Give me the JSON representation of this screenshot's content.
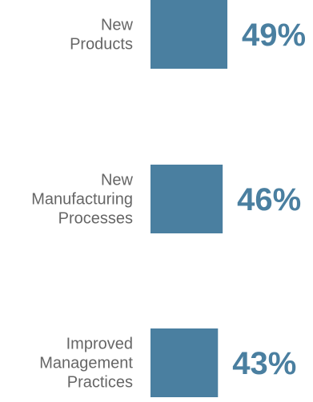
{
  "chart_data": {
    "type": "bar",
    "categories": [
      [
        "New",
        "Products"
      ],
      [
        "New",
        "Manufacturing",
        "Processes"
      ],
      [
        "Improved",
        "Management",
        "Practices"
      ]
    ],
    "values": [
      49,
      46,
      43
    ],
    "value_labels": [
      "49%",
      "46%",
      "43%"
    ],
    "unit": "%",
    "orientation": "horizontal",
    "bar_color": "#4a7fa0",
    "value_label_color": "#4a7fa0",
    "category_label_color": "#666666",
    "title": "",
    "xlabel": "",
    "ylabel": "",
    "legend": "none",
    "grid": false
  }
}
